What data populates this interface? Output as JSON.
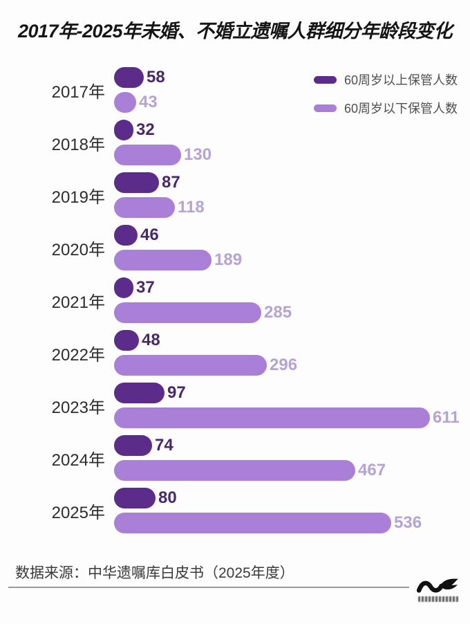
{
  "title": "2017年-2025年未婚、不婚立遗嘱人群细分年龄段变化",
  "legend": [
    {
      "label": "60周岁以上保管人数"
    },
    {
      "label": "60周岁以下保管人数"
    }
  ],
  "chart_data": {
    "type": "bar",
    "orientation": "horizontal",
    "title": "2017年-2025年未婚、不婚立遗嘱人群细分年龄段变化",
    "categories": [
      "2017年",
      "2018年",
      "2019年",
      "2020年",
      "2021年",
      "2022年",
      "2023年",
      "2024年",
      "2025年"
    ],
    "series": [
      {
        "name": "60周岁以上保管人数",
        "color": "#5b2c8a",
        "label_color": "#49276f",
        "values": [
          58,
          32,
          87,
          46,
          37,
          48,
          97,
          74,
          80
        ]
      },
      {
        "name": "60周岁以下保管人数",
        "color": "#a97fd8",
        "label_color": "#b5a3d6",
        "values": [
          43,
          130,
          118,
          189,
          285,
          296,
          611,
          467,
          536
        ]
      }
    ],
    "value_labels": true,
    "axes_visible": false,
    "grid": false,
    "legend_position": "top-right",
    "xlim": [
      0,
      650
    ]
  },
  "source": {
    "text": "数据来源：中华遗嘱库白皮书（2025年度）"
  },
  "colors": {
    "background": "#fdfdfd",
    "bar_over60": "#5b2c8a",
    "bar_under60": "#a97fd8",
    "value_over60": "#49276f",
    "value_under60": "#b5a3d6",
    "year_label": "#2d2d2d",
    "legend_text": "#4f4f4f",
    "title_text": "#151515",
    "source_text": "#3a3a3a",
    "rule": "#9a9a9a",
    "watermark": "#111111"
  }
}
